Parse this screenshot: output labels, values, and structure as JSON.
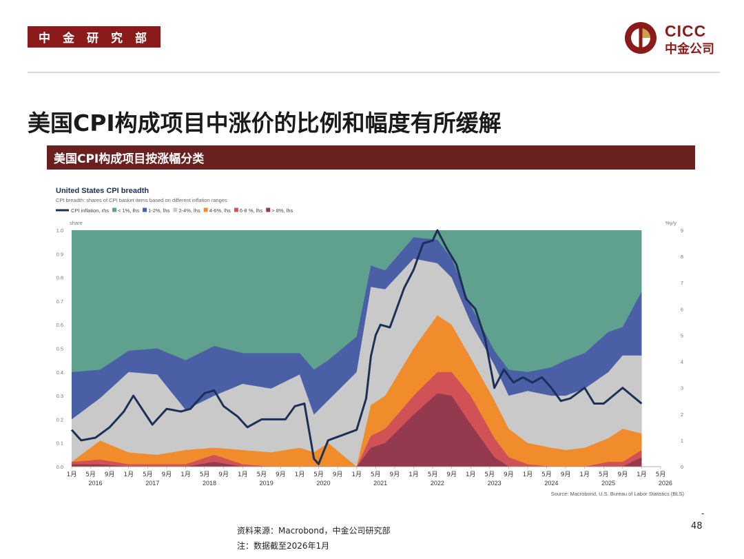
{
  "header": {
    "department": "中金研究部",
    "logo_en": "CICC",
    "logo_cn": "中金公司",
    "brand_color": "#8b1a1a"
  },
  "page_title": "美国CPI构成项目中涨价的比例和幅度有所缓解",
  "section_title": "美国CPI构成项目按涨幅分类",
  "chart_data": {
    "type": "area",
    "title": "United States CPI breadth",
    "subtitle": "CPI breadth: shares of CPI basket items based on different inflation ranges",
    "ylabel": "share",
    "y2label": "%y/y",
    "ylim": [
      0,
      1.0
    ],
    "y2lim": [
      0,
      9
    ],
    "yticks": [
      "0.0",
      "0.1",
      "0.2",
      "0.3",
      "0.4",
      "0.5",
      "0.6",
      "0.7",
      "0.8",
      "0.9",
      "1.0"
    ],
    "y2ticks": [
      "0",
      "1",
      "2",
      "3",
      "4",
      "5",
      "6",
      "7",
      "8",
      "9"
    ],
    "month_labels": [
      "1月",
      "5月",
      "9月"
    ],
    "final_month_labels": [
      "1月",
      "5月"
    ],
    "years": [
      "2016",
      "2017",
      "2018",
      "2019",
      "2020",
      "2021",
      "2022",
      "2023",
      "2024",
      "2025",
      "2026"
    ],
    "source": "Source: Macrobond, U.S. Bureau of Labor Statistics (BLS)",
    "legend": [
      "CPI inflation, rhs",
      "< 1%, lhs",
      "1-2%, lhs",
      "2-4%, lhs",
      "4-6%, lhs",
      "6-8 %, lhs",
      "> 8%, lhs"
    ],
    "colors": {
      "cpi": "#1b2f57",
      "lt1": "#5fa08e",
      "p1_2": "#4a5fa6",
      "p2_4": "#c8c9c8",
      "p4_6": "#f08c2c",
      "p6_8": "#d05257",
      "gt8": "#943a4f"
    },
    "x_start": "2016-01",
    "x_end": "2026-01",
    "x_axis_end": "2026-05",
    "series_yearly_anchor_note": "",
    "stack_anchors": {
      "dates": [
        "2016-01",
        "2016-07",
        "2017-01",
        "2017-07",
        "2018-01",
        "2018-07",
        "2019-01",
        "2019-07",
        "2020-01",
        "2020-04",
        "2020-07",
        "2021-01",
        "2021-04",
        "2021-07",
        "2022-01",
        "2022-06",
        "2022-09",
        "2023-01",
        "2023-06",
        "2023-09",
        "2024-01",
        "2024-06",
        "2024-09",
        "2025-01",
        "2025-06",
        "2025-09",
        "2026-01"
      ],
      "gt8": [
        0.01,
        0.01,
        0.0,
        0.0,
        0.0,
        0.02,
        0.0,
        0.0,
        0.0,
        0.0,
        0.0,
        0.0,
        0.08,
        0.1,
        0.22,
        0.31,
        0.3,
        0.18,
        0.04,
        0.0,
        0.0,
        0.0,
        0.0,
        0.0,
        0.0,
        0.0,
        0.04
      ],
      "p6_8": [
        0.01,
        0.02,
        0.01,
        0.01,
        0.01,
        0.03,
        0.01,
        0.0,
        0.0,
        0.0,
        0.0,
        0.0,
        0.05,
        0.06,
        0.08,
        0.09,
        0.1,
        0.12,
        0.08,
        0.04,
        0.01,
        0.0,
        0.0,
        0.0,
        0.02,
        0.02,
        0.03
      ],
      "p4_6": [
        0.0,
        0.08,
        0.05,
        0.04,
        0.06,
        0.03,
        0.06,
        0.06,
        0.08,
        0.06,
        0.1,
        0.0,
        0.13,
        0.14,
        0.2,
        0.24,
        0.2,
        0.16,
        0.16,
        0.12,
        0.09,
        0.08,
        0.07,
        0.08,
        0.1,
        0.14,
        0.07
      ],
      "p2_4": [
        0.18,
        0.18,
        0.34,
        0.34,
        0.17,
        0.22,
        0.28,
        0.27,
        0.31,
        0.16,
        0.18,
        0.4,
        0.5,
        0.45,
        0.38,
        0.22,
        0.2,
        0.15,
        0.15,
        0.14,
        0.22,
        0.22,
        0.23,
        0.25,
        0.28,
        0.31,
        0.33
      ],
      "p1_2": [
        0.2,
        0.12,
        0.09,
        0.11,
        0.21,
        0.21,
        0.13,
        0.15,
        0.09,
        0.19,
        0.17,
        0.15,
        0.09,
        0.08,
        0.09,
        0.1,
        0.08,
        0.07,
        0.06,
        0.11,
        0.08,
        0.12,
        0.15,
        0.15,
        0.17,
        0.12,
        0.27
      ]
    },
    "cpi_anchors": {
      "dates": [
        "2016-01",
        "2016-03",
        "2016-06",
        "2016-09",
        "2016-12",
        "2017-02",
        "2017-06",
        "2017-09",
        "2017-12",
        "2018-02",
        "2018-05",
        "2018-07",
        "2018-09",
        "2018-12",
        "2019-02",
        "2019-05",
        "2019-07",
        "2019-10",
        "2019-12",
        "2020-02",
        "2020-04",
        "2020-05",
        "2020-07",
        "2020-10",
        "2021-01",
        "2021-03",
        "2021-04",
        "2021-05",
        "2021-06",
        "2021-08",
        "2021-11",
        "2022-01",
        "2022-03",
        "2022-05",
        "2022-06",
        "2022-08",
        "2022-10",
        "2022-12",
        "2023-02",
        "2023-04",
        "2023-06",
        "2023-08",
        "2023-10",
        "2023-12",
        "2024-02",
        "2024-04",
        "2024-06",
        "2024-08",
        "2024-10",
        "2025-01",
        "2025-03",
        "2025-05",
        "2025-07",
        "2025-09",
        "2025-11",
        "2026-01"
      ],
      "values": [
        1.4,
        1.0,
        1.1,
        1.5,
        2.1,
        2.7,
        1.6,
        2.2,
        2.1,
        2.2,
        2.8,
        2.9,
        2.3,
        1.9,
        1.5,
        1.8,
        1.8,
        1.8,
        2.3,
        2.4,
        0.3,
        0.1,
        1.0,
        1.2,
        1.4,
        2.6,
        4.2,
        5.0,
        5.4,
        5.3,
        6.8,
        7.5,
        8.5,
        8.6,
        9.0,
        8.3,
        7.7,
        6.4,
        6.0,
        4.9,
        3.0,
        3.7,
        3.2,
        3.4,
        3.2,
        3.4,
        3.0,
        2.5,
        2.6,
        3.0,
        2.4,
        2.4,
        2.7,
        3.0,
        2.7,
        2.4
      ]
    }
  },
  "footer": {
    "source": "资料来源：Macrobond，中金公司研究部",
    "note": "注：数据截至2026年1月",
    "page_dash": "-",
    "page_number": "48"
  }
}
